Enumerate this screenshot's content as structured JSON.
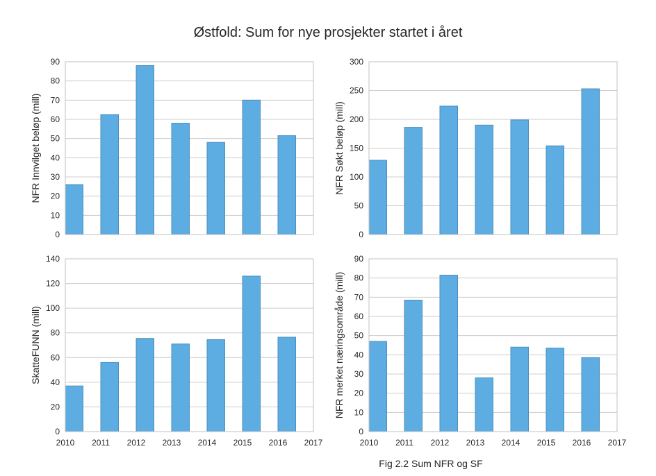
{
  "title": "Østfold: Sum for nye prosjekter startet i året",
  "caption": "Fig 2.2 Sum NFR og SF",
  "colors": {
    "bar": "#5DADE2",
    "bar_edge": "#4A8FBF",
    "grid": "#CCCCCC",
    "frame": "#C0C0C0"
  },
  "chart_data": [
    {
      "type": "bar",
      "ylabel": "NFR Innvilget beløp (mill)",
      "x": [
        2010,
        2011,
        2012,
        2013,
        2014,
        2015,
        2016
      ],
      "values": [
        26,
        62.5,
        88,
        58,
        48,
        70,
        51.5
      ],
      "xlim": [
        2010,
        2017
      ],
      "ylim": [
        0,
        90
      ],
      "yticks": [
        0,
        10,
        20,
        30,
        40,
        50,
        60,
        70,
        80,
        90
      ],
      "xticks": [],
      "grid": true
    },
    {
      "type": "bar",
      "ylabel": "NFR Søkt beløp (mill)",
      "x": [
        2010,
        2011,
        2012,
        2013,
        2014,
        2015,
        2016
      ],
      "values": [
        129,
        186,
        223,
        190,
        199,
        154,
        253
      ],
      "xlim": [
        2010,
        2017
      ],
      "ylim": [
        0,
        300
      ],
      "yticks": [
        0,
        50,
        100,
        150,
        200,
        250,
        300
      ],
      "xticks": [],
      "grid": true
    },
    {
      "type": "bar",
      "ylabel": "SkatteFUNN (mill)",
      "x": [
        2010,
        2011,
        2012,
        2013,
        2014,
        2015,
        2016
      ],
      "values": [
        37,
        56,
        75.5,
        71,
        74.5,
        126,
        76.5
      ],
      "xlim": [
        2010,
        2017
      ],
      "ylim": [
        0,
        140
      ],
      "yticks": [
        0,
        20,
        40,
        60,
        80,
        100,
        120,
        140
      ],
      "xticks": [
        2010,
        2011,
        2012,
        2013,
        2014,
        2015,
        2016,
        2017
      ],
      "grid": true
    },
    {
      "type": "bar",
      "ylabel": "NFR merket næringsområde (mill)",
      "x": [
        2010,
        2011,
        2012,
        2013,
        2014,
        2015,
        2016
      ],
      "values": [
        47,
        68.5,
        81.5,
        28,
        44,
        43.5,
        38.5
      ],
      "xlim": [
        2010,
        2017
      ],
      "ylim": [
        0,
        90
      ],
      "yticks": [
        0,
        10,
        20,
        30,
        40,
        50,
        60,
        70,
        80,
        90
      ],
      "xticks": [
        2010,
        2011,
        2012,
        2013,
        2014,
        2015,
        2016,
        2017
      ],
      "grid": true
    }
  ]
}
